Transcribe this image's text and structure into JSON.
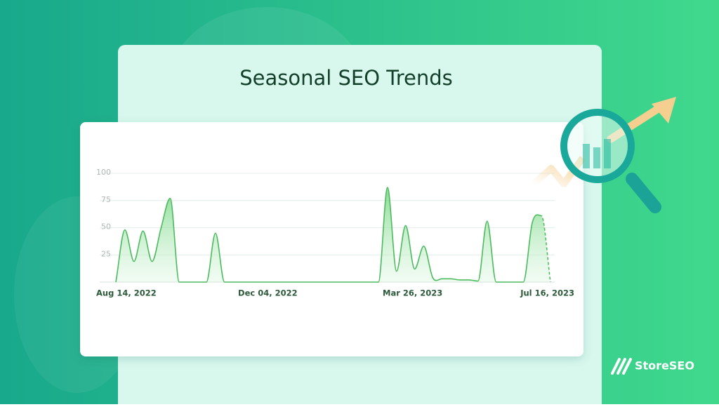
{
  "chart_data": {
    "type": "line",
    "title": "Seasonal SEO Trends",
    "categories": [
      "Aug 14, 2022",
      null,
      null,
      null,
      null,
      null,
      null,
      null,
      null,
      null,
      null,
      null,
      null,
      null,
      null,
      null,
      "Dec 04, 2022",
      null,
      null,
      null,
      null,
      null,
      null,
      null,
      null,
      null,
      null,
      null,
      null,
      null,
      null,
      null,
      "Mar 26, 2023",
      null,
      null,
      null,
      null,
      null,
      null,
      null,
      null,
      null,
      null,
      null,
      null,
      null,
      null,
      null,
      "Jul 16, 2023"
    ],
    "values": [
      0,
      48,
      19,
      47,
      19,
      50,
      77,
      0,
      0,
      0,
      0,
      45,
      0,
      0,
      0,
      0,
      0,
      0,
      0,
      0,
      0,
      0,
      0,
      0,
      0,
      0,
      0,
      0,
      0,
      0,
      87,
      10,
      52,
      12,
      33,
      4,
      3,
      3,
      2,
      2,
      1,
      56,
      0,
      0,
      0,
      0,
      55,
      61,
      0
    ],
    "color": "#4cbb5e",
    "ylim": [
      0,
      100
    ],
    "yticks": [
      25,
      50,
      75,
      100
    ],
    "grid": true
  },
  "brand": "StoreSEO"
}
